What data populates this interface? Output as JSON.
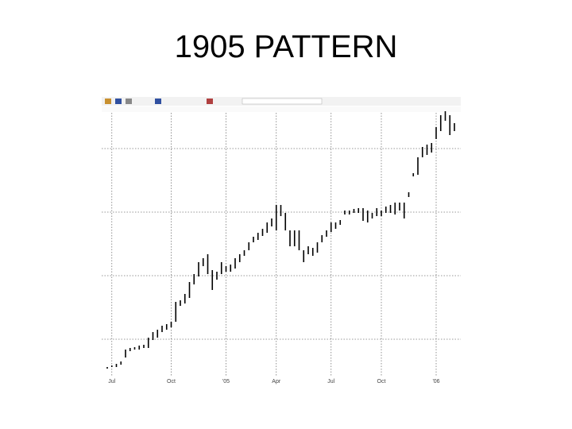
{
  "chart_data": {
    "type": "range_bar",
    "title": "1905 PATTERN",
    "x": [
      0,
      1,
      2,
      3,
      4,
      5,
      6,
      7,
      8,
      9,
      10,
      11,
      12,
      13,
      14,
      15,
      16,
      17,
      18,
      19,
      20,
      21,
      22,
      23,
      24,
      25,
      26,
      27,
      28,
      29,
      30,
      31,
      32,
      33,
      34,
      35,
      36,
      37,
      38,
      39,
      40,
      41,
      42,
      43,
      44,
      45,
      46,
      47,
      48,
      49,
      50,
      51,
      52,
      53,
      54,
      55,
      56,
      57,
      58,
      59,
      60,
      61,
      62,
      63,
      64,
      65,
      66,
      67,
      68,
      69,
      70,
      71,
      72,
      73,
      74,
      75,
      76
    ],
    "high": [
      18,
      20,
      22,
      25,
      40,
      42,
      43,
      45,
      46,
      55,
      62,
      65,
      70,
      72,
      75,
      100,
      102,
      110,
      125,
      135,
      150,
      155,
      160,
      140,
      138,
      150,
      145,
      147,
      155,
      160,
      165,
      175,
      182,
      187,
      192,
      200,
      205,
      222,
      222,
      212,
      190,
      190,
      190,
      165,
      170,
      168,
      175,
      184,
      190,
      200,
      200,
      203,
      215,
      215,
      217,
      218,
      218,
      215,
      212,
      218,
      215,
      220,
      222,
      225,
      225,
      225,
      238,
      262,
      282,
      295,
      298,
      300,
      320,
      335,
      340,
      335,
      325
    ],
    "low": [
      16,
      18,
      18,
      21,
      30,
      38,
      40,
      40,
      42,
      42,
      52,
      55,
      62,
      65,
      68,
      75,
      95,
      98,
      105,
      122,
      132,
      145,
      135,
      115,
      128,
      135,
      138,
      138,
      142,
      150,
      158,
      165,
      175,
      178,
      183,
      187,
      195,
      190,
      208,
      190,
      170,
      170,
      165,
      150,
      160,
      158,
      162,
      175,
      182,
      188,
      192,
      197,
      210,
      210,
      212,
      212,
      202,
      200,
      205,
      208,
      208,
      212,
      212,
      210,
      215,
      205,
      232,
      258,
      260,
      282,
      285,
      288,
      305,
      315,
      328,
      310,
      315
    ],
    "color": "#000000",
    "xlim": [
      -1,
      77
    ],
    "ylim": [
      0,
      360
    ],
    "xticks": [
      {
        "value": 1,
        "label": "Jul"
      },
      {
        "value": 14,
        "label": "Oct"
      },
      {
        "value": 26,
        "label": "'05"
      },
      {
        "value": 37,
        "label": "Apr"
      },
      {
        "value": 49,
        "label": "Jul"
      },
      {
        "value": 60,
        "label": "Oct"
      },
      {
        "value": 72,
        "label": "'06"
      }
    ],
    "ygrid": [
      53,
      133,
      213,
      293
    ],
    "grid": true
  }
}
